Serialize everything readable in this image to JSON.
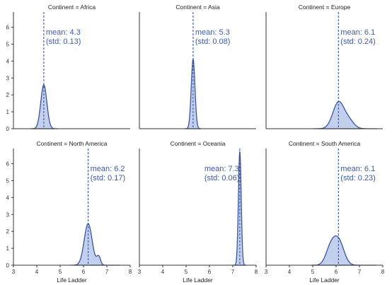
{
  "colors": {
    "fill": "#aec0e8",
    "line": "#3a559f",
    "annotation": "#3b5aa8",
    "axis": "#333333"
  },
  "chart_data": [
    {
      "type": "area",
      "title": "Continent = Africa",
      "xlabel": "",
      "ylabel": "",
      "xlim": [
        3,
        8
      ],
      "ylim": [
        0,
        6.9
      ],
      "mean_label": "mean: 4.3",
      "std_label": "(std: 0.13)",
      "mean": 4.3,
      "std": 0.13,
      "peak": 2.6,
      "bump": null,
      "yticks": [
        0,
        1,
        2,
        3,
        4,
        5,
        6
      ],
      "xticks": []
    },
    {
      "type": "area",
      "title": "Continent = Asia",
      "xlabel": "",
      "ylabel": "",
      "xlim": [
        3,
        8
      ],
      "ylim": [
        0,
        6.9
      ],
      "mean_label": "mean: 5.3",
      "std_label": "(std: 0.08)",
      "mean": 5.3,
      "std": 0.08,
      "peak": 4.1,
      "bump": null,
      "yticks": [],
      "xticks": []
    },
    {
      "type": "area",
      "title": "Continent = Europe",
      "xlabel": "",
      "ylabel": "",
      "xlim": [
        3,
        8
      ],
      "ylim": [
        0,
        6.9
      ],
      "mean_label": "mean: 6.1",
      "std_label": "(std: 0.24)",
      "mean": 6.1,
      "std": 0.24,
      "peak": 1.55,
      "bump": {
        "x": 6.55,
        "std": 0.22,
        "height": 0.45
      },
      "yticks": [],
      "xticks": []
    },
    {
      "type": "area",
      "title": "Continent = North America",
      "xlabel": "Life Ladder",
      "ylabel": "",
      "xlim": [
        3,
        8
      ],
      "ylim": [
        0,
        6.9
      ],
      "mean_label": "mean: 6.2",
      "std_label": "(std: 0.17)",
      "mean": 6.2,
      "std": 0.17,
      "peak": 2.45,
      "bump": {
        "x": 6.65,
        "std": 0.08,
        "height": 0.5
      },
      "yticks": [
        0,
        1,
        2,
        3,
        4,
        5,
        6
      ],
      "xticks": [
        3,
        4,
        5,
        6,
        7,
        8
      ]
    },
    {
      "type": "area",
      "title": "Continent = Oceania",
      "xlabel": "Life Ladder",
      "ylabel": "",
      "xlim": [
        3,
        8
      ],
      "ylim": [
        0,
        6.9
      ],
      "mean_label": "mean: 7.3",
      "std_label": "(std: 0.06)",
      "mean": 7.3,
      "std": 0.06,
      "peak": 6.7,
      "bump": null,
      "yticks": [],
      "xticks": [
        3,
        4,
        5,
        6,
        7,
        8
      ]
    },
    {
      "type": "area",
      "title": "Continent = South America",
      "xlabel": "Life Ladder",
      "ylabel": "",
      "xlim": [
        3,
        8
      ],
      "ylim": [
        0,
        6.9
      ],
      "mean_label": "mean: 6.1",
      "std_label": "(std: 0.23)",
      "mean": 6.1,
      "std": 0.23,
      "peak": 1.45,
      "bump": {
        "x": 5.75,
        "std": 0.2,
        "height": 0.9
      },
      "yticks": [],
      "xticks": [
        3,
        4,
        5,
        6,
        7,
        8
      ]
    }
  ]
}
